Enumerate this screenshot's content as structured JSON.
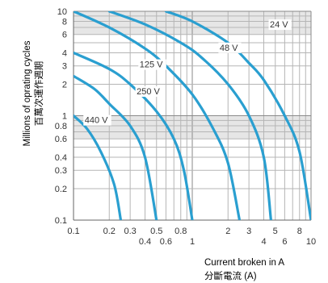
{
  "chart_data": {
    "type": "line",
    "title": "",
    "xlabel": "Current broken in A",
    "xlabel_zh": "分斷電流 (A)",
    "ylabel": "Millions of oprating cycles",
    "ylabel_zh": "百萬次運作週期",
    "x_scale": "log",
    "y_scale": "log",
    "xlim": [
      0.1,
      10
    ],
    "ylim": [
      0.1,
      10
    ],
    "grid": true,
    "shaded_bands": [
      [
        6,
        10
      ],
      [
        0.6,
        1
      ]
    ],
    "x_ticks_upper": [
      "0.1",
      "0.2",
      "0.3",
      "0.5",
      "0.8",
      "2",
      "3",
      "5",
      "8"
    ],
    "x_ticks_upper_values": [
      0.1,
      0.2,
      0.3,
      0.5,
      0.8,
      2,
      3,
      5,
      8
    ],
    "x_ticks_lower": [
      "0.4",
      "0.6",
      "1",
      "4",
      "6",
      "10"
    ],
    "x_ticks_lower_values": [
      0.4,
      0.6,
      1,
      4,
      6,
      10
    ],
    "y_ticks": [
      "10",
      "8",
      "6",
      "4",
      "3",
      "2",
      "1",
      "0.8",
      "0.6",
      "0.4",
      "0.3",
      "0.2",
      "0.1"
    ],
    "y_ticks_values": [
      10,
      8,
      6,
      4,
      3,
      2,
      1,
      0.8,
      0.6,
      0.4,
      0.3,
      0.2,
      0.1
    ],
    "line_color": "#2a9fd0",
    "series": [
      {
        "name": "440 V",
        "points": [
          [
            0.1,
            1.0
          ],
          [
            0.13,
            0.75
          ],
          [
            0.17,
            0.45
          ],
          [
            0.22,
            0.22
          ],
          [
            0.25,
            0.1
          ]
        ]
      },
      {
        "name": "250 V",
        "points": [
          [
            0.1,
            2.4
          ],
          [
            0.15,
            1.8
          ],
          [
            0.2,
            1.3
          ],
          [
            0.3,
            0.8
          ],
          [
            0.4,
            0.4
          ],
          [
            0.5,
            0.1
          ]
        ]
      },
      {
        "name": "125 V",
        "points": [
          [
            0.1,
            4.0
          ],
          [
            0.2,
            2.8
          ],
          [
            0.3,
            2.0
          ],
          [
            0.5,
            1.1
          ],
          [
            0.7,
            0.6
          ],
          [
            0.85,
            0.3
          ],
          [
            1.0,
            0.1
          ]
        ]
      },
      {
        "name": "48 V",
        "points": [
          [
            0.1,
            10.0
          ],
          [
            0.2,
            7.0
          ],
          [
            0.4,
            4.4
          ],
          [
            0.6,
            3.0
          ],
          [
            1.0,
            1.6
          ],
          [
            1.5,
            0.75
          ],
          [
            2.0,
            0.35
          ],
          [
            2.5,
            0.1
          ]
        ]
      },
      {
        "name": "24 V",
        "points": [
          [
            0.2,
            10.0
          ],
          [
            0.4,
            7.5
          ],
          [
            0.8,
            5.0
          ],
          [
            1.2,
            3.6
          ],
          [
            2.0,
            2.0
          ],
          [
            3.0,
            1.0
          ],
          [
            4.0,
            0.4
          ],
          [
            4.6,
            0.1
          ]
        ]
      },
      {
        "name": "",
        "points": [
          [
            0.6,
            10.0
          ],
          [
            1.0,
            8.0
          ],
          [
            2.0,
            5.0
          ],
          [
            3.0,
            3.2
          ],
          [
            4.0,
            2.2
          ],
          [
            6.0,
            1.0
          ],
          [
            8.0,
            0.45
          ],
          [
            10.0,
            0.1
          ]
        ]
      }
    ],
    "series_labels": [
      {
        "text": "24 V",
        "x": 4.5,
        "y": 7.0
      },
      {
        "text": "48 V",
        "x": 1.7,
        "y": 4.2
      },
      {
        "text": "125 V",
        "x": 0.36,
        "y": 2.9
      },
      {
        "text": "250 V",
        "x": 0.34,
        "y": 1.6
      },
      {
        "text": "440 V",
        "x": 0.124,
        "y": 0.85
      }
    ]
  }
}
